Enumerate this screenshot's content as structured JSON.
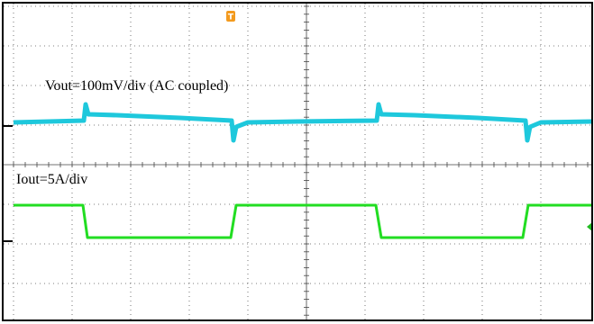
{
  "trigger_marker": "T",
  "traces": [
    {
      "label": "Vout=100mV/div (AC coupled)"
    },
    {
      "label": "Iout=5A/div"
    }
  ]
}
